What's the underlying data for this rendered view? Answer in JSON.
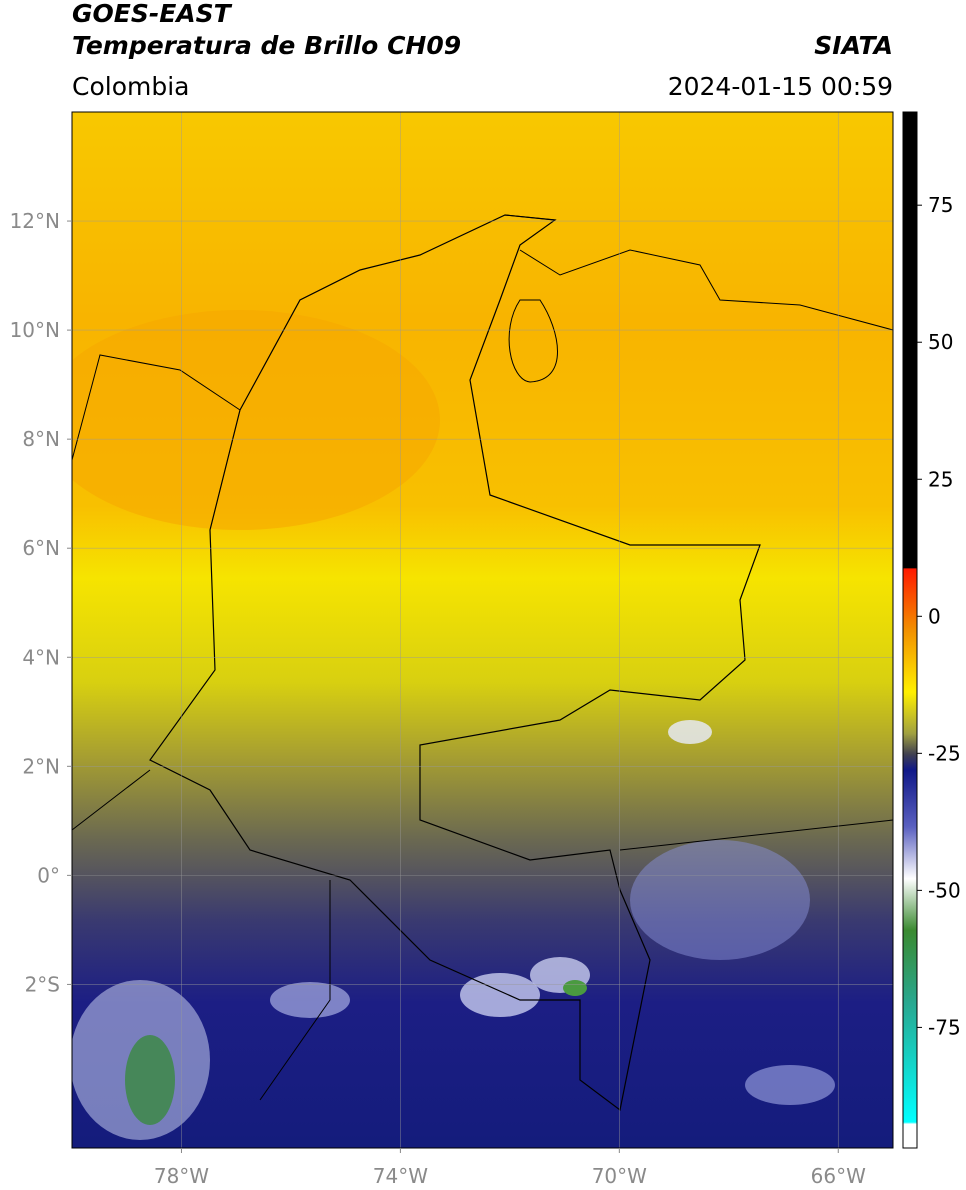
{
  "header": {
    "title": "GOES-EAST",
    "subtitle": "Temperatura de Brillo CH09",
    "source": "SIATA",
    "region": "Colombia",
    "datetime": "2024-01-15 00:59"
  },
  "map": {
    "lonlim": [
      -80,
      -65
    ],
    "latlim": [
      -5,
      14
    ],
    "grid": true,
    "lon_ticks": [
      {
        "value": -78,
        "label": "78°W"
      },
      {
        "value": -74,
        "label": "74°W"
      },
      {
        "value": -70,
        "label": "70°W"
      },
      {
        "value": -66,
        "label": "66°W"
      }
    ],
    "lat_ticks": [
      {
        "value": 12,
        "label": "12°N"
      },
      {
        "value": 10,
        "label": "10°N"
      },
      {
        "value": 8,
        "label": "8°N"
      },
      {
        "value": 6,
        "label": "6°N"
      },
      {
        "value": 4,
        "label": "4°N"
      },
      {
        "value": 2,
        "label": "2°N"
      },
      {
        "value": 0,
        "label": "0°"
      },
      {
        "value": -2,
        "label": "2°S"
      }
    ]
  },
  "colorbar": {
    "lim": [
      -97,
      92
    ],
    "ticks": [
      75,
      50,
      25,
      0,
      -25,
      -50,
      -75
    ]
  }
}
